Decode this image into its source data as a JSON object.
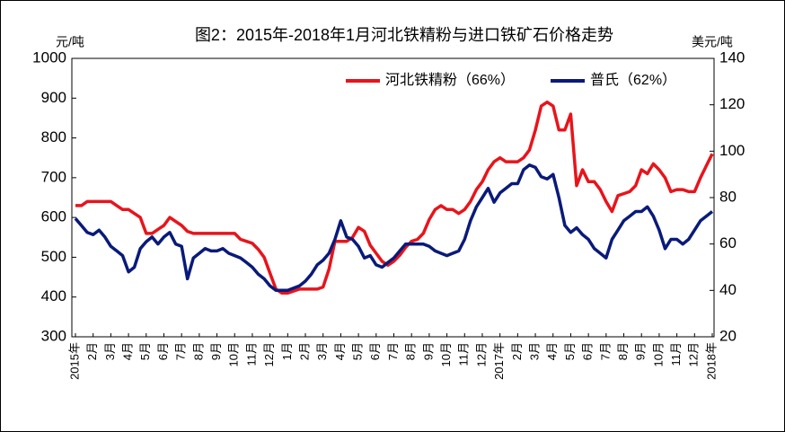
{
  "chart_data": {
    "type": "line",
    "title": "图2：2015年-2018年1月河北铁精粉与进口铁矿石价格走势",
    "ylabel": "元/吨",
    "y2label": "美元/吨",
    "ylim": [
      300,
      1000
    ],
    "yticks": [
      300,
      400,
      500,
      600,
      700,
      800,
      900,
      1000
    ],
    "y2lim": [
      20,
      140
    ],
    "y2ticks": [
      20,
      40,
      60,
      80,
      100,
      120,
      140
    ],
    "legend": "top-right",
    "categories": [
      "2015年",
      null,
      null,
      "2月",
      null,
      null,
      "3月",
      null,
      null,
      "4月",
      null,
      null,
      "5月",
      null,
      null,
      "6月",
      null,
      null,
      "7月",
      null,
      null,
      "8月",
      null,
      null,
      "9月",
      null,
      null,
      "10月",
      null,
      null,
      "11月",
      null,
      null,
      "12月",
      null,
      null,
      "1月",
      null,
      null,
      "2月",
      null,
      null,
      "3月",
      null,
      null,
      "4月",
      null,
      null,
      "5月",
      null,
      null,
      "6月",
      null,
      null,
      "7月",
      null,
      null,
      "8月",
      null,
      null,
      "9月",
      null,
      null,
      "10月",
      null,
      null,
      "11月",
      null,
      null,
      "12月",
      null,
      null,
      "2017年",
      null,
      null,
      "2月",
      null,
      null,
      "3月",
      null,
      null,
      "4月",
      null,
      null,
      "5月",
      null,
      null,
      "6月",
      null,
      null,
      "7月",
      null,
      null,
      "8月",
      null,
      null,
      "9月",
      null,
      null,
      "10月",
      null,
      null,
      "11月",
      null,
      null,
      "12月",
      null,
      null,
      "2018年"
    ],
    "series": [
      {
        "name": "河北铁精粉（66%）",
        "color": "#e8141b",
        "axis": "y",
        "values": [
          630,
          630,
          640,
          640,
          640,
          640,
          640,
          630,
          620,
          620,
          610,
          600,
          560,
          560,
          570,
          580,
          600,
          590,
          580,
          565,
          560,
          560,
          560,
          560,
          560,
          560,
          560,
          560,
          545,
          540,
          535,
          520,
          500,
          460,
          420,
          410,
          410,
          415,
          420,
          420,
          420,
          420,
          425,
          470,
          540,
          540,
          540,
          550,
          575,
          565,
          530,
          510,
          490,
          480,
          490,
          505,
          525,
          540,
          545,
          560,
          595,
          620,
          630,
          620,
          620,
          610,
          620,
          640,
          670,
          690,
          720,
          740,
          750,
          740,
          740,
          740,
          750,
          770,
          820,
          880,
          890,
          880,
          820,
          820,
          860,
          680,
          720,
          690,
          690,
          670,
          640,
          615,
          655,
          660,
          665,
          680,
          720,
          710,
          735,
          720,
          700,
          665,
          670,
          670,
          665,
          665,
          700,
          730,
          760
        ]
      },
      {
        "name": "普氏（62%）",
        "color": "#0a1a7a",
        "axis": "y2",
        "values": [
          71,
          68,
          65,
          64,
          66,
          63,
          59,
          57,
          55,
          48,
          50,
          58,
          61,
          63,
          60,
          63,
          65,
          60,
          59,
          45,
          54,
          56,
          58,
          57,
          57,
          58,
          56,
          55,
          54,
          52,
          50,
          47,
          45,
          42,
          40,
          40,
          40,
          41,
          42,
          44,
          47,
          51,
          53,
          56,
          62,
          70,
          63,
          62,
          59,
          54,
          55,
          51,
          50,
          52,
          54,
          57,
          60,
          60,
          60,
          60,
          59,
          57,
          56,
          55,
          56,
          57,
          62,
          70,
          76,
          80,
          84,
          78,
          82,
          84,
          86,
          86,
          92,
          94,
          93,
          89,
          88,
          90,
          80,
          68,
          65,
          67,
          64,
          62,
          58,
          56,
          54,
          62,
          66,
          70,
          72,
          74,
          74,
          76,
          72,
          66,
          58,
          62,
          62,
          60,
          62,
          66,
          70,
          72,
          74
        ]
      }
    ]
  }
}
